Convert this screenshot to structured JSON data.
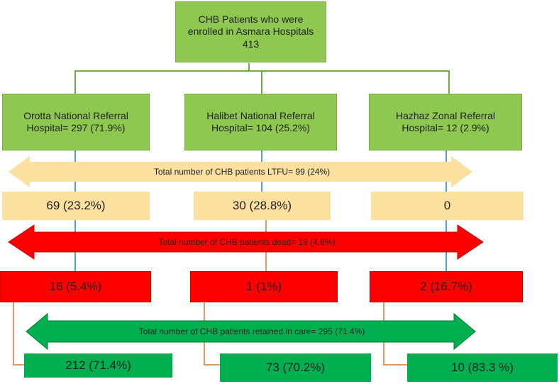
{
  "colors": {
    "hospital_box": "#8fc850",
    "ltfu": "#fbe0a0",
    "dead": "#ff0000",
    "retained": "#00b050"
  },
  "root": {
    "line1": "CHB Patients who were",
    "line2": "enrolled in Asmara Hospitals",
    "count": "413"
  },
  "hospitals": [
    {
      "line1": "Orotta National Referral",
      "line2": "Hospital= 297 (71.9%)"
    },
    {
      "line1": "Halibet National Referral",
      "line2": "Hospital= 104 (25.2%)"
    },
    {
      "line1": "Hazhaz Zonal Referral",
      "line2": "Hospital= 12 (2.9%)"
    }
  ],
  "ltfu": {
    "total_label": "Total number of CHB patients LTFU= 99 (24%)",
    "values": [
      "69 (23.2%)",
      "30 (28.8%)",
      "0"
    ]
  },
  "dead": {
    "total_label": "Total number of CHB patients dead= 19 (4.6%)",
    "values": [
      "16 (5.4%)",
      "1 (1%)",
      "2 (16.7%)"
    ]
  },
  "retained": {
    "total_label": "Total number of CHB patients retained in care= 295 (71.4%)",
    "values": [
      "212 (71.4%)",
      "73 (70.2%)",
      "10 (83.3 %)"
    ]
  }
}
